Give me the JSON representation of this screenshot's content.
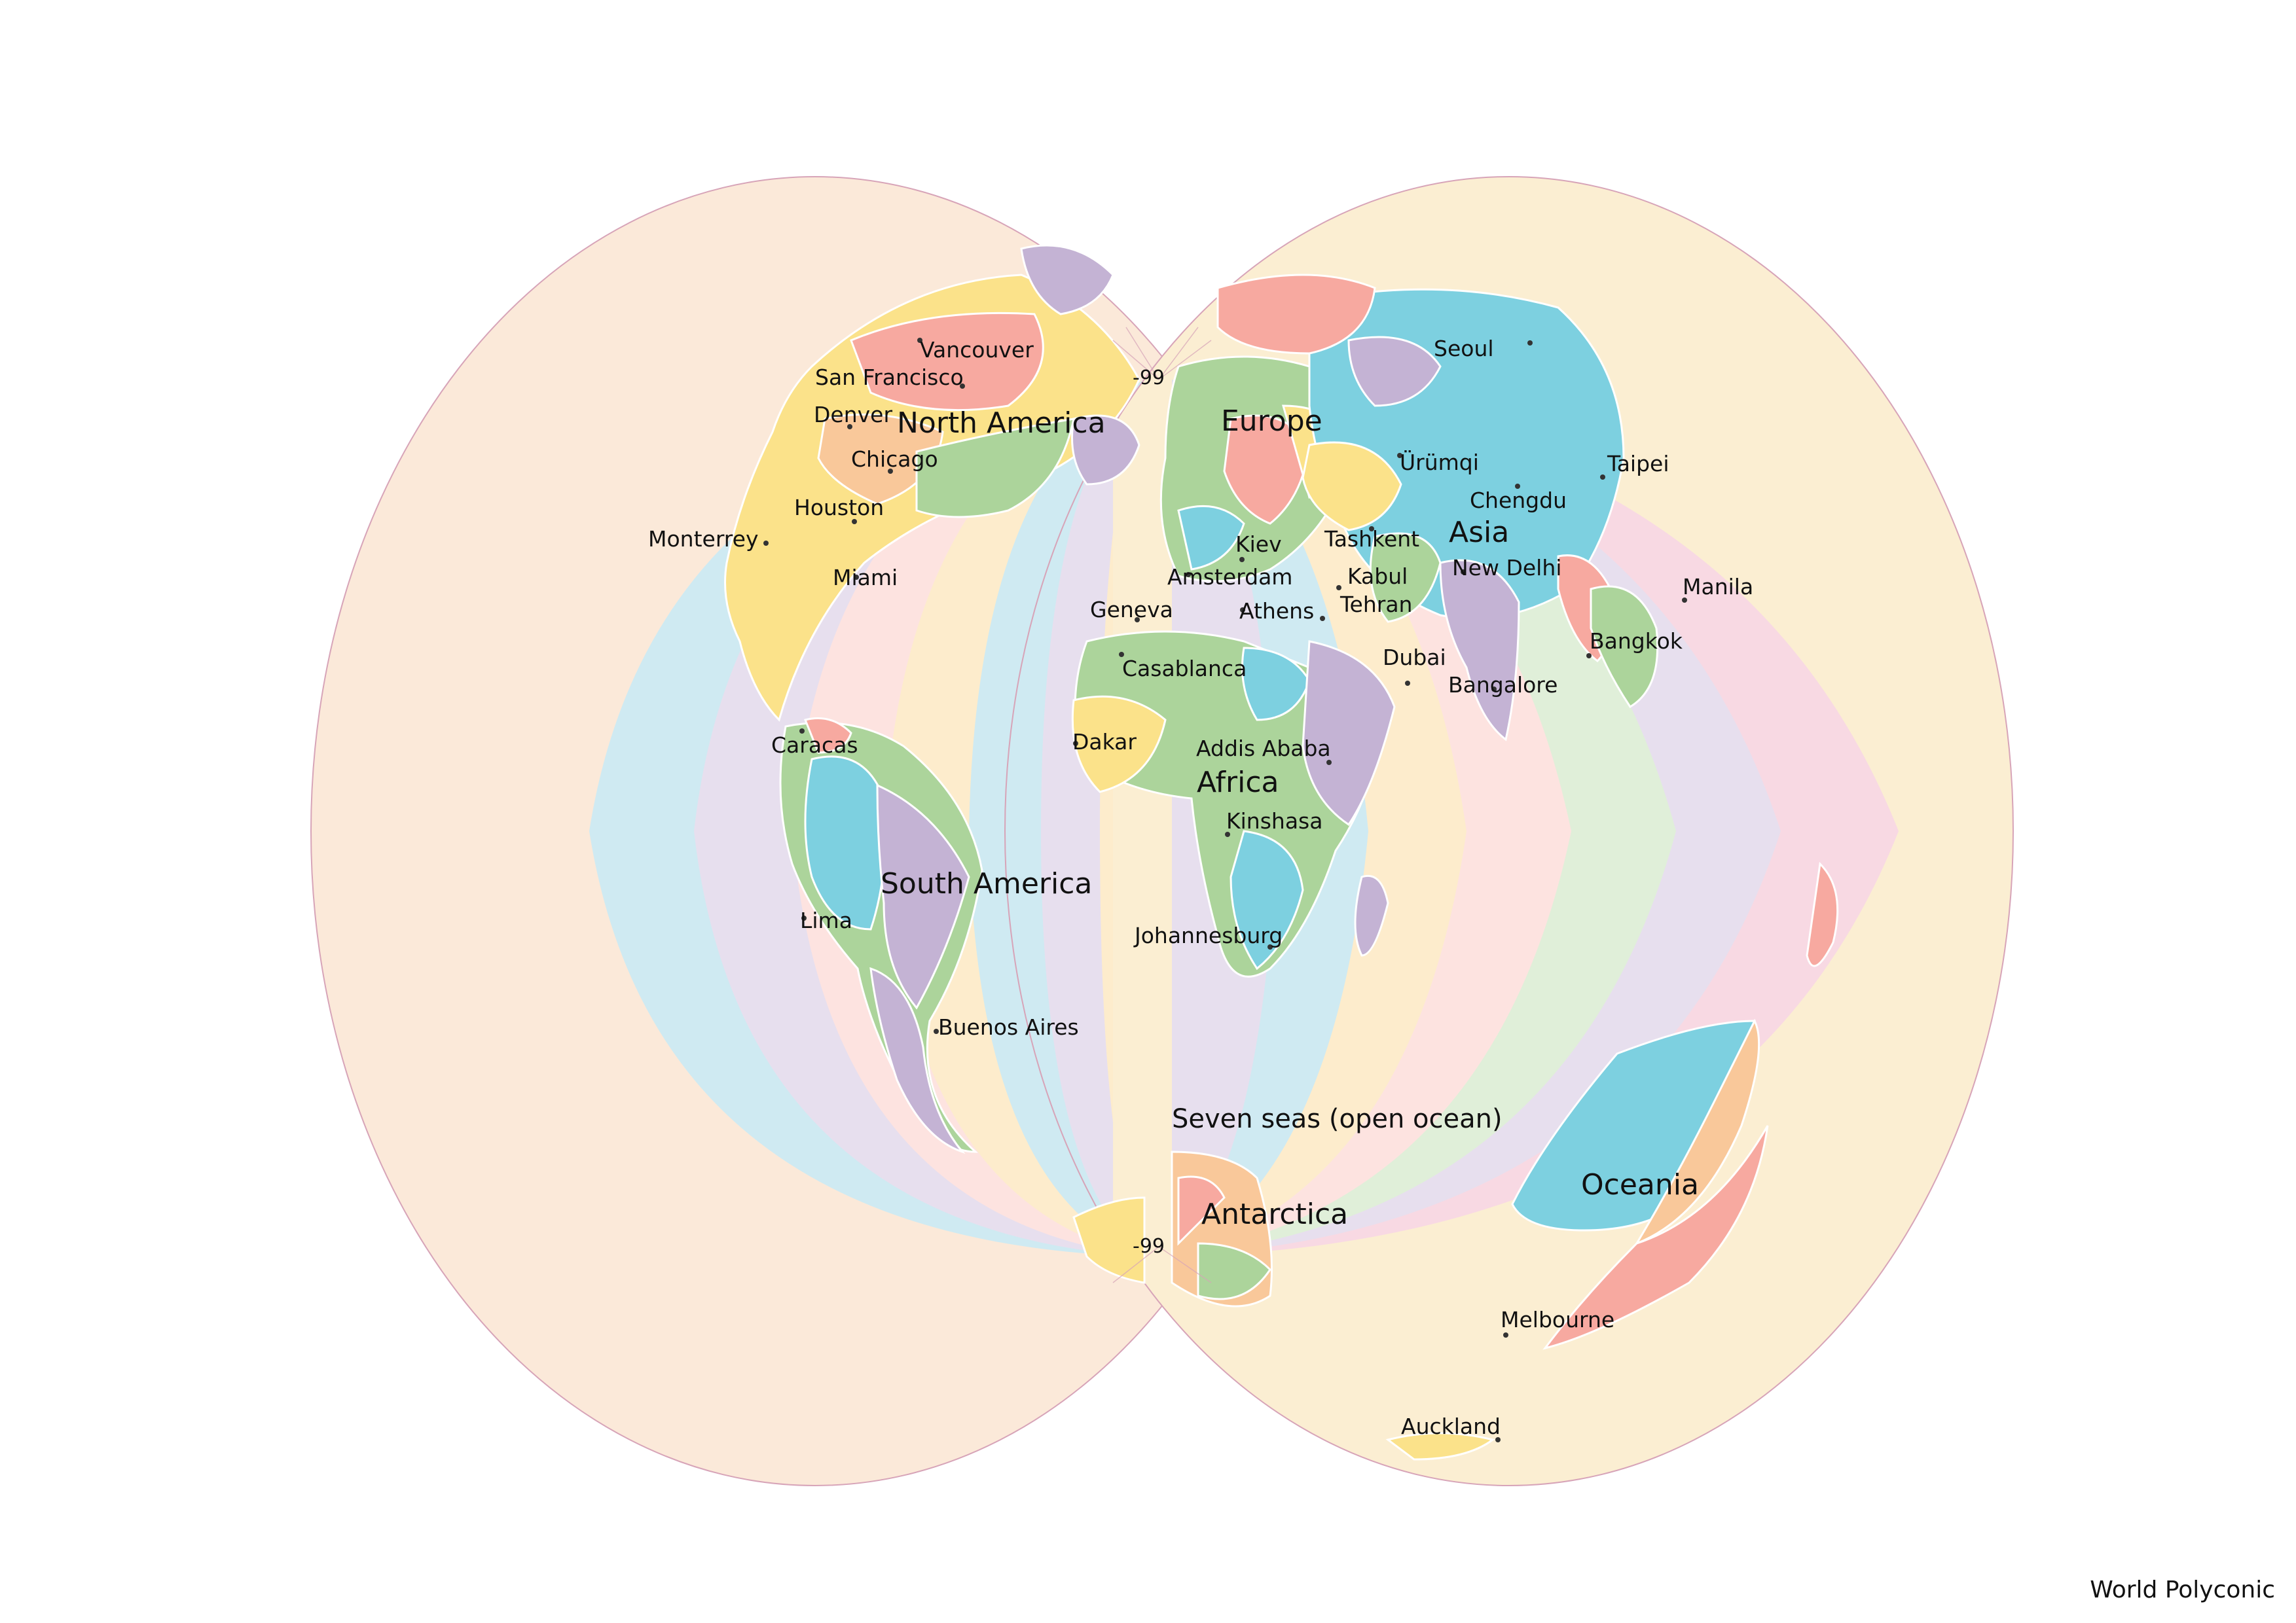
{
  "title": "World Polyconic",
  "continents": [
    {
      "id": "north-america",
      "label": "North America"
    },
    {
      "id": "europe",
      "label": "Europe"
    },
    {
      "id": "asia",
      "label": "Asia"
    },
    {
      "id": "africa",
      "label": "Africa"
    },
    {
      "id": "south-america",
      "label": "South America"
    },
    {
      "id": "oceania",
      "label": "Oceania"
    },
    {
      "id": "antarctica",
      "label": "Antarctica"
    },
    {
      "id": "seven-seas",
      "label": "Seven seas (open ocean)"
    }
  ],
  "cities": [
    {
      "id": "vancouver",
      "label": "Vancouver"
    },
    {
      "id": "san-francisco",
      "label": "San Francisco"
    },
    {
      "id": "denver",
      "label": "Denver"
    },
    {
      "id": "chicago",
      "label": "Chicago"
    },
    {
      "id": "houston",
      "label": "Houston"
    },
    {
      "id": "monterrey",
      "label": "Monterrey"
    },
    {
      "id": "miami",
      "label": "Miami"
    },
    {
      "id": "caracas",
      "label": "Caracas"
    },
    {
      "id": "lima",
      "label": "Lima"
    },
    {
      "id": "buenos-aires",
      "label": "Buenos Aires"
    },
    {
      "id": "kiev",
      "label": "Kiev"
    },
    {
      "id": "amsterdam",
      "label": "Amsterdam"
    },
    {
      "id": "geneva",
      "label": "Geneva"
    },
    {
      "id": "athens",
      "label": "Athens"
    },
    {
      "id": "casablanca",
      "label": "Casablanca"
    },
    {
      "id": "dakar",
      "label": "Dakar"
    },
    {
      "id": "addis-ababa",
      "label": "Addis Ababa"
    },
    {
      "id": "kinshasa",
      "label": "Kinshasa"
    },
    {
      "id": "johannesburg",
      "label": "Johannesburg"
    },
    {
      "id": "seoul",
      "label": "Seoul"
    },
    {
      "id": "urumqi",
      "label": "Ürümqi"
    },
    {
      "id": "chengdu",
      "label": "Chengdu"
    },
    {
      "id": "taipei",
      "label": "Taipei"
    },
    {
      "id": "tashkent",
      "label": "Tashkent"
    },
    {
      "id": "kabul",
      "label": "Kabul"
    },
    {
      "id": "tehran",
      "label": "Tehran"
    },
    {
      "id": "new-delhi",
      "label": "New Delhi"
    },
    {
      "id": "manila",
      "label": "Manila"
    },
    {
      "id": "bangkok",
      "label": "Bangkok"
    },
    {
      "id": "dubai",
      "label": "Dubai"
    },
    {
      "id": "bangalore",
      "label": "Bangalore"
    },
    {
      "id": "melbourne",
      "label": "Melbourne"
    },
    {
      "id": "auckland",
      "label": "Auckland"
    }
  ],
  "pole_labels": {
    "north": "-99",
    "south": "-99"
  },
  "palette": [
    "#fde3e0",
    "#cfeaf2",
    "#e7dfee",
    "#fdeccc",
    "#e0efd9",
    "#fde6d8",
    "#fbeed2",
    "#f8d9e3"
  ],
  "land_colors": {
    "green": "#acd49b",
    "blue": "#7dd0e0",
    "purple": "#c4b3d4",
    "yellow": "#fbe28a",
    "salmon": "#f7a9a0",
    "peach": "#f9c89a"
  }
}
